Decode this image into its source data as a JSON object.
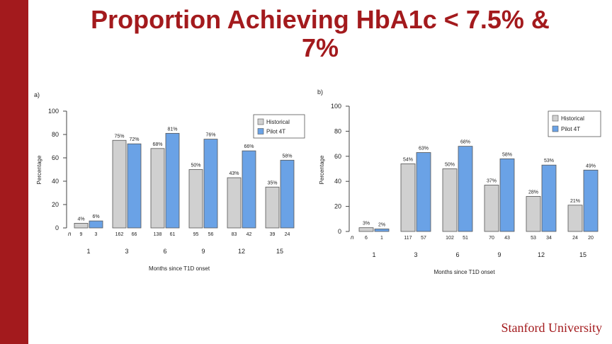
{
  "slide": {
    "title_line1": "Proportion Achieving HbA1c < 7.5% &",
    "title_line2": "7%",
    "brand": "Stanford University",
    "accent_color": "#a31a1d"
  },
  "chart_data": [
    {
      "type": "bar",
      "panel_label": "a)",
      "categories": [
        "1",
        "3",
        "6",
        "9",
        "12",
        "15"
      ],
      "series": [
        {
          "name": "Historical",
          "color": "#d0d0d0",
          "values": [
            4,
            75,
            68,
            50,
            43,
            35
          ],
          "labels": [
            "4%",
            "75%",
            "68%",
            "50%",
            "43%",
            "35%"
          ],
          "n": [
            "9",
            "162",
            "138",
            "95",
            "83",
            "39"
          ]
        },
        {
          "name": "Pilot 4T",
          "color": "#6aa2e6",
          "values": [
            6,
            72,
            81,
            76,
            66,
            58
          ],
          "labels": [
            "6%",
            "72%",
            "81%",
            "76%",
            "66%",
            "58%"
          ],
          "n": [
            "3",
            "66",
            "61",
            "56",
            "42",
            "24"
          ]
        }
      ],
      "n_label": "n",
      "xlabel": "Months since T1D onset",
      "ylabel": "Percentage",
      "ylim": [
        0,
        100
      ],
      "yticks": [
        "0",
        "20",
        "40",
        "60",
        "80",
        "100"
      ],
      "grid": false,
      "legend": "top-right"
    },
    {
      "type": "bar",
      "panel_label": "b)",
      "categories": [
        "1",
        "3",
        "6",
        "9",
        "12",
        "15"
      ],
      "series": [
        {
          "name": "Historical",
          "color": "#d0d0d0",
          "values": [
            3,
            54,
            50,
            37,
            28,
            21
          ],
          "labels": [
            "3%",
            "54%",
            "50%",
            "37%",
            "28%",
            "21%"
          ],
          "n": [
            "6",
            "117",
            "102",
            "70",
            "53",
            "24"
          ]
        },
        {
          "name": "Pilot 4T",
          "color": "#6aa2e6",
          "values": [
            2,
            63,
            68,
            58,
            53,
            49
          ],
          "labels": [
            "2%",
            "63%",
            "68%",
            "58%",
            "53%",
            "49%"
          ],
          "n": [
            "1",
            "57",
            "51",
            "43",
            "34",
            "20"
          ]
        }
      ],
      "n_label": "n",
      "xlabel": "Months since T1D onset",
      "ylabel": "Percentage",
      "ylim": [
        0,
        100
      ],
      "yticks": [
        "0",
        "20",
        "40",
        "60",
        "80",
        "100"
      ],
      "grid": false,
      "legend": "top-right"
    }
  ]
}
